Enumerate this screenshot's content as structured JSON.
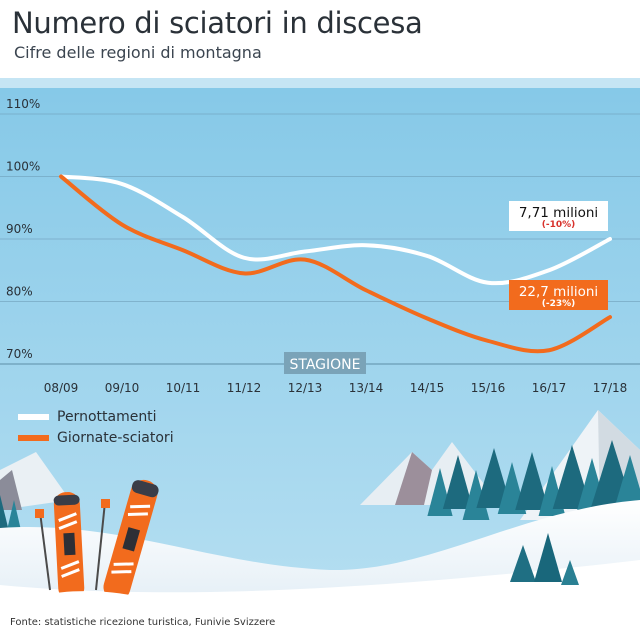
{
  "header": {
    "title": "Numero di sciatori in discesa",
    "subtitle": "Cifre delle regioni di montagna"
  },
  "footer": {
    "source": "Fonte: statistiche ricezione turistica, Funivie Svizzere"
  },
  "colors": {
    "sky_top": "#7ec5e6",
    "sky_bottom": "#b8e0f2",
    "pernottamenti": "#ffffff",
    "giornate": "#f26b1d",
    "grid": "#6f9fb8",
    "badge_white": "#ffffff",
    "badge_orange": "#f26b1d",
    "badge_negative": "#d8312b",
    "stagione_bg": "#7aa3b8"
  },
  "chart_data": {
    "type": "line",
    "title": "Numero di sciatori in discesa",
    "subtitle": "Cifre delle regioni di montagna",
    "xlabel": "STAGIONE",
    "ylabel": "",
    "categories": [
      "08/09",
      "09/10",
      "10/11",
      "11/12",
      "12/13",
      "13/14",
      "14/15",
      "15/16",
      "16/17",
      "17/18"
    ],
    "yticks": [
      "70%",
      "80%",
      "90%",
      "100%",
      "110%"
    ],
    "ylim": [
      70,
      110
    ],
    "grid": true,
    "legend_position": "bottom-left",
    "series": [
      {
        "name": "Pernottamenti",
        "values": [
          100,
          98.8,
          93.5,
          87,
          88,
          89,
          87.3,
          83,
          85,
          90
        ],
        "end_label": "7,71 milioni",
        "end_change": "(-10%)"
      },
      {
        "name": "Giornate-sciatori",
        "values": [
          100,
          92.3,
          88.2,
          84.5,
          86.7,
          81.8,
          77.3,
          73.7,
          72.2,
          77.5
        ],
        "end_label": "22,7 milioni",
        "end_change": "(-23%)"
      }
    ]
  }
}
